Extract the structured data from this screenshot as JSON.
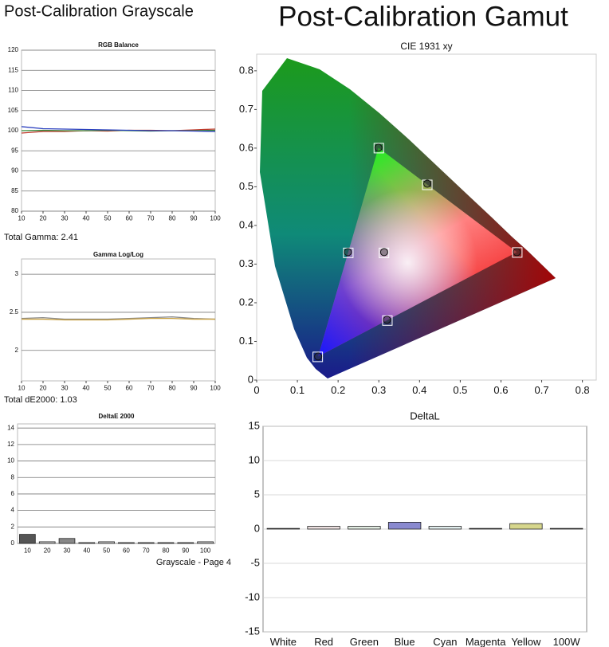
{
  "page": {
    "grayscale_heading": "Post-Calibration Grayscale",
    "gamut_heading": "Post-Calibration Gamut",
    "total_gamma": "Total Gamma: 2.41",
    "total_de": "Total dE2000: 1.03",
    "footer": "Grayscale - Page 4"
  },
  "chart_data": [
    {
      "type": "line",
      "title": "RGB Balance",
      "x": [
        10,
        20,
        30,
        40,
        50,
        60,
        70,
        80,
        90,
        100
      ],
      "xlim": [
        10,
        100
      ],
      "xticks": [
        10,
        20,
        30,
        40,
        50,
        60,
        70,
        80,
        90,
        100
      ],
      "ylim": [
        80,
        120
      ],
      "yticks": [
        80,
        85,
        90,
        95,
        100,
        105,
        110,
        115,
        120
      ],
      "grid": true,
      "series": [
        {
          "color": "#c0392b",
          "values": [
            99.4,
            99.8,
            99.8,
            100.0,
            99.9,
            100.1,
            100.1,
            100.0,
            100.2,
            100.4
          ]
        },
        {
          "color": "#3a8a3a",
          "values": [
            100.0,
            100.1,
            100.0,
            100.0,
            100.1,
            100.0,
            99.9,
            100.0,
            100.0,
            100.1
          ]
        },
        {
          "color": "#2a3fbf",
          "values": [
            101.0,
            100.5,
            100.4,
            100.3,
            100.2,
            100.1,
            100.0,
            100.0,
            99.9,
            99.8
          ]
        }
      ]
    },
    {
      "type": "line",
      "title": "Gamma Log/Log",
      "x": [
        10,
        20,
        30,
        40,
        50,
        60,
        70,
        80,
        90,
        100
      ],
      "xlim": [
        10,
        100
      ],
      "xticks": [
        10,
        20,
        30,
        40,
        50,
        60,
        70,
        80,
        90,
        100
      ],
      "ylim": [
        1.6,
        3.2
      ],
      "yticks": [
        2,
        2.5,
        3
      ],
      "grid": true,
      "series": [
        {
          "color": "#8c8c8c",
          "values": [
            2.42,
            2.43,
            2.41,
            2.41,
            2.41,
            2.42,
            2.43,
            2.44,
            2.42,
            2.41
          ]
        },
        {
          "color": "#c8a040",
          "values": [
            2.41,
            2.41,
            2.4,
            2.4,
            2.4,
            2.41,
            2.42,
            2.42,
            2.41,
            2.41
          ]
        }
      ]
    },
    {
      "type": "bar",
      "title": "DeltaE 2000",
      "categories": [
        "10",
        "20",
        "30",
        "40",
        "50",
        "60",
        "70",
        "80",
        "90",
        "100"
      ],
      "values": [
        1.1,
        0.2,
        0.6,
        0.1,
        0.2,
        0.1,
        0.1,
        0.1,
        0.1,
        0.2
      ],
      "colors": [
        "#555555",
        "#cccccc",
        "#888888",
        "#cccccc",
        "#cccccc",
        "#cccccc",
        "#cccccc",
        "#cccccc",
        "#cccccc",
        "#cccccc"
      ],
      "ylim": [
        0,
        14.5
      ],
      "yticks": [
        0,
        2,
        4,
        6,
        8,
        10,
        12,
        14
      ],
      "grid": true
    },
    {
      "type": "scatter",
      "title": "CIE 1931 xy",
      "xlim": [
        0,
        0.834
      ],
      "xticks": [
        0,
        0.1,
        0.2,
        0.3,
        0.4,
        0.5,
        0.6,
        0.7,
        0.8
      ],
      "ylim": [
        0,
        0.843
      ],
      "yticks": [
        0,
        0.1,
        0.2,
        0.3,
        0.4,
        0.5,
        0.6,
        0.7,
        0.8
      ],
      "grid": false,
      "series": [
        {
          "marker": "square",
          "color": "#ffffff",
          "x": [
            0.64,
            0.3,
            0.15,
            0.225,
            0.321,
            0.419,
            0.3127
          ],
          "values": [
            0.33,
            0.6,
            0.06,
            0.329,
            0.154,
            0.505,
            0.329
          ]
        },
        {
          "marker": "circle",
          "color": "#333333",
          "x": [
            0.639,
            0.299,
            0.151,
            0.224,
            0.32,
            0.419,
            0.313
          ],
          "values": [
            0.331,
            0.601,
            0.061,
            0.331,
            0.156,
            0.508,
            0.331
          ]
        }
      ]
    },
    {
      "type": "bar",
      "title": "DeltaL",
      "categories": [
        "White",
        "Red",
        "Green",
        "Blue",
        "Cyan",
        "Magenta",
        "Yellow",
        "100W"
      ],
      "values": [
        0.1,
        0.4,
        0.4,
        1.0,
        0.4,
        0.1,
        0.8,
        0.1
      ],
      "colors": [
        "#eeeeee",
        "#eadede",
        "#e0eae0",
        "#8a8ad0",
        "#e0ecec",
        "#ece0ec",
        "#d6d68c",
        "#eeeeee"
      ],
      "ylim": [
        -15,
        15
      ],
      "yticks": [
        -15,
        -10,
        -5,
        0,
        5,
        10,
        15
      ],
      "grid": true
    }
  ]
}
